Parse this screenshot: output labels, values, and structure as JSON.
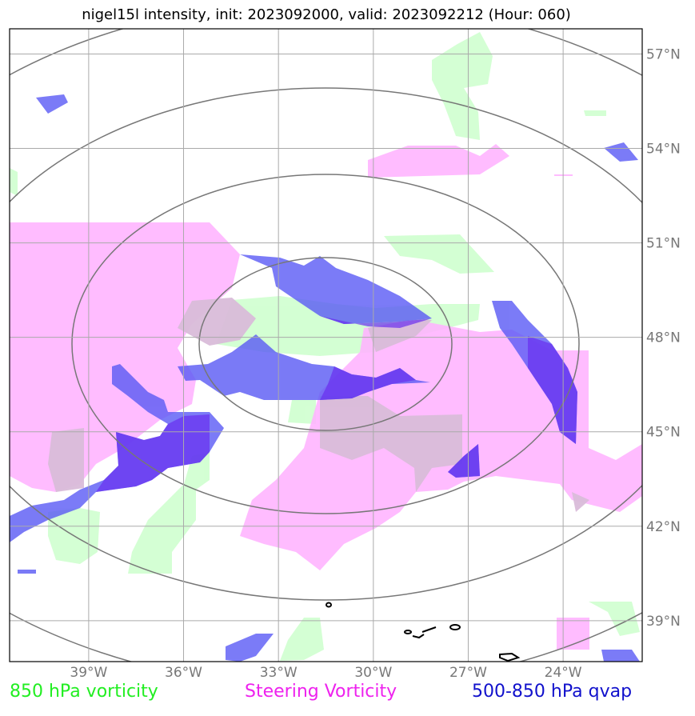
{
  "title": "nigel15l intensity, init: 2023092000, valid: 2023092212 (Hour: 060)",
  "map": {
    "lon_range": [
      -41.5,
      -21.5
    ],
    "lat_range": [
      37.7,
      57.8
    ],
    "lon_ticks": [
      {
        "value": -39,
        "label": "39°W"
      },
      {
        "value": -36,
        "label": "36°W"
      },
      {
        "value": -33,
        "label": "33°W"
      },
      {
        "value": -30,
        "label": "30°W"
      },
      {
        "value": -27,
        "label": "27°W"
      },
      {
        "value": -24,
        "label": "24°W"
      }
    ],
    "lat_ticks": [
      {
        "value": 57,
        "label": "57°N"
      },
      {
        "value": 54,
        "label": "54°N"
      },
      {
        "value": 51,
        "label": "51°N"
      },
      {
        "value": 48,
        "label": "48°N"
      },
      {
        "value": 45,
        "label": "45°N"
      },
      {
        "value": 42,
        "label": "42°N"
      },
      {
        "value": 39,
        "label": "39°N"
      }
    ],
    "grid": true,
    "range_rings_center": {
      "lon": -31.3,
      "lat": 47.8
    },
    "colors": {
      "vorticity_850": "#ccffcc",
      "steering_vorticity": "#ffb3ff",
      "qvap": "#5a5af5",
      "overlap": "#d9bcd9",
      "grid": "#aaaaaa",
      "rings": "#777777"
    }
  },
  "legend": {
    "item1": "850 hPa vorticity",
    "item2": "Steering Vorticity",
    "item3": "500-850 hPa qvap"
  }
}
